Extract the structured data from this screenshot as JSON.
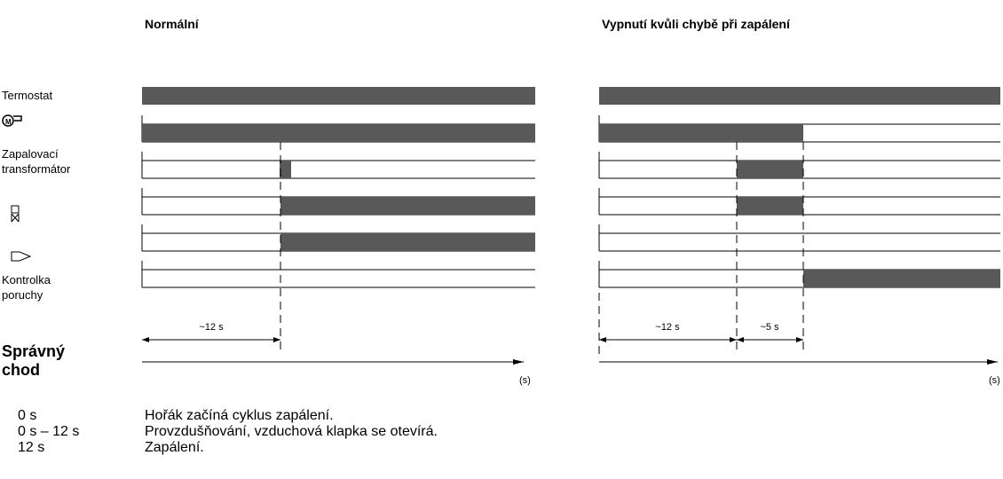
{
  "headings": {
    "left": "Normální",
    "right": "Vypnutí kvůli chybě při zapálení"
  },
  "signals": {
    "thermostat": "Termostat",
    "transformer": [
      "Zapalovací",
      "transformátor"
    ],
    "fault_lamp": [
      "Kontrolka",
      "poruchy"
    ]
  },
  "section": [
    "Správný",
    "chod"
  ],
  "timing": {
    "left_purge": "~12 s",
    "right_purge": "~12 s",
    "right_safety": "~5 s",
    "left_axis": "(s)",
    "right_axis": "(s)"
  },
  "description": [
    [
      "0 s",
      "Hořák začíná cyklus zapálení."
    ],
    [
      "0 s – 12 s",
      "Provzdušňování, vzduchová klapka se otevírá."
    ],
    [
      "12 s",
      "Zapálení."
    ]
  ]
}
